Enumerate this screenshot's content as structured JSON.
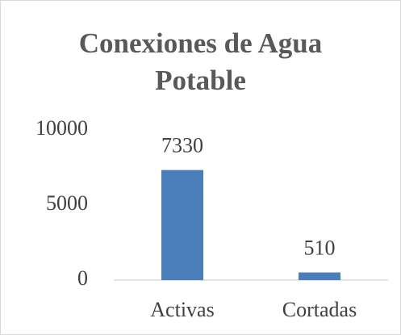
{
  "chart_data": {
    "type": "bar",
    "title": "Conexiones de Agua Potable",
    "categories": [
      "Activas",
      "Cortadas"
    ],
    "values": [
      7330,
      510
    ],
    "color": "#4a7ebb",
    "ylim": [
      0,
      10000
    ],
    "yticks": [
      0,
      5000,
      10000
    ],
    "grid": false
  }
}
